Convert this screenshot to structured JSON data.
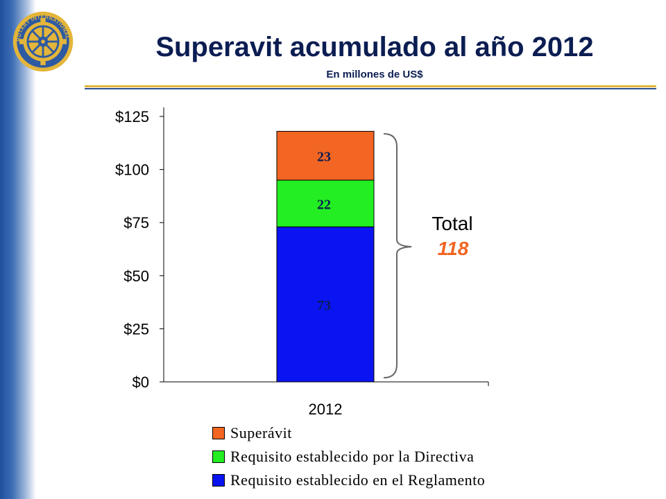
{
  "slide": {
    "title": "Superavit acumulado al año 2012",
    "subtitle": "En millones de US$"
  },
  "logo": {
    "icon": "rotary-wheel-icon",
    "text": "ROTARY INTERNATIONAL"
  },
  "total": {
    "label": "Total",
    "value": "118"
  },
  "colors": {
    "superavit": "#f26522",
    "directiva": "#22ee22",
    "reglamento": "#0a14f0",
    "total_value": "#f26522",
    "title": "#0b1d52"
  },
  "chart_data": {
    "type": "bar",
    "stacked": true,
    "categories": [
      "2012"
    ],
    "series": [
      {
        "name": "Requisito establecido en el Reglamento",
        "values": [
          73
        ],
        "label": "73",
        "color": "#0a14f0"
      },
      {
        "name": "Requisito establecido por la Directiva",
        "values": [
          22
        ],
        "label": "22",
        "color": "#22ee22"
      },
      {
        "name": "Superávit",
        "values": [
          23
        ],
        "label": "23",
        "color": "#f26522"
      }
    ],
    "yticks": [
      "$0",
      "$25",
      "$50",
      "$75",
      "$100",
      "$125"
    ],
    "ylim": [
      0,
      125
    ],
    "xlabel": "",
    "ylabel": "",
    "grid": false,
    "legend_position": "bottom",
    "legend_order": [
      "Superávit",
      "Requisito establecido por la Directiva",
      "Requisito establecido en el Reglamento"
    ]
  }
}
